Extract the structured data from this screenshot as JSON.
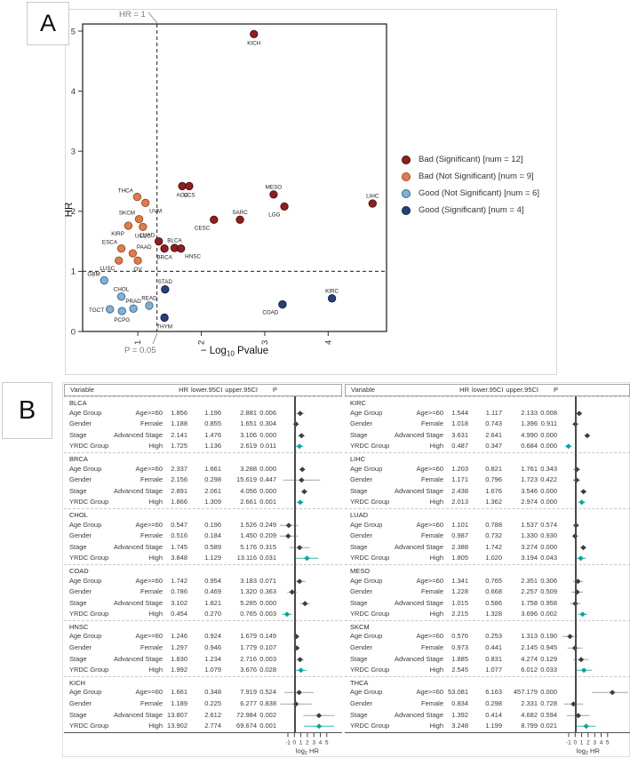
{
  "panelA": {
    "label": "A",
    "legend_title": "",
    "legend": [
      {
        "label": "Bad (Significant) [num = 12]",
        "color": "#8e1f1f",
        "stroke": "#4a0d0d"
      },
      {
        "label": "Bad (Not Significant) [num = 9]",
        "color": "#e07b4f",
        "stroke": "#9c4a1e"
      },
      {
        "label": "Good (Not Significant) [num = 6]",
        "color": "#7fb2d5",
        "stroke": "#39648c"
      },
      {
        "label": "Good (Significant) [num = 4]",
        "color": "#26407c",
        "stroke": "#101e3e"
      }
    ]
  },
  "panelB": {
    "label": "B",
    "headers": {
      "variable": "Variable",
      "hr": "HR",
      "lower": "lower.95CI",
      "upper": "upper.95CI",
      "p": "P"
    },
    "axis": {
      "ticks": [
        -1,
        0,
        1,
        2,
        3,
        4,
        5
      ],
      "label_parts": [
        "log",
        "2",
        " HR"
      ]
    }
  },
  "chart_data": [
    {
      "id": "hr-vs-pvalue-scatter",
      "type": "scatter",
      "title": "",
      "xlabel": "− Log10 Pvalue",
      "xlabel_parts": [
        "− Log",
        "10",
        " Pvalue"
      ],
      "ylabel": "HR",
      "xlim": [
        0.13,
        4.92
      ],
      "ylim": [
        0,
        5.1
      ],
      "xticks": [
        1,
        2,
        3,
        4
      ],
      "yticks": [
        0,
        1,
        2,
        3,
        4,
        5
      ],
      "vline": {
        "x": 1.301,
        "label": "P = 0.05"
      },
      "hline": {
        "y": 1,
        "label": "HR = 1"
      },
      "series": [
        {
          "name": "Bad (Significant) [num = 12]",
          "color": "#8e1f1f",
          "stroke": "#4a0d0d",
          "points": [
            {
              "label": "KICH",
              "x": 2.83,
              "y": 4.95,
              "lp": "s"
            },
            {
              "label": "ACC",
              "x": 1.7,
              "y": 2.42,
              "lp": "s"
            },
            {
              "label": "UCS",
              "x": 1.81,
              "y": 2.42,
              "lp": "s"
            },
            {
              "label": "MESO",
              "x": 3.14,
              "y": 2.28,
              "lp": "n"
            },
            {
              "label": "LGG",
              "x": 3.31,
              "y": 2.08,
              "lp": "sw"
            },
            {
              "label": "LIHC",
              "x": 4.7,
              "y": 2.13,
              "lp": "n"
            },
            {
              "label": "SARC",
              "x": 2.61,
              "y": 1.86,
              "lp": "n"
            },
            {
              "label": "CESC",
              "x": 2.2,
              "y": 1.86,
              "lp": "sw"
            },
            {
              "label": "LUAD",
              "x": 1.33,
              "y": 1.5,
              "lp": "nw"
            },
            {
              "label": "BRCA",
              "x": 1.42,
              "y": 1.38,
              "lp": "s"
            },
            {
              "label": "BLCA",
              "x": 1.58,
              "y": 1.39,
              "lp": "n"
            },
            {
              "label": "HNSC",
              "x": 1.68,
              "y": 1.38,
              "lp": "se"
            }
          ]
        },
        {
          "name": "Bad (Not Significant) [num = 9]",
          "color": "#e07b4f",
          "stroke": "#9c4a1e",
          "points": [
            {
              "label": "THCA",
              "x": 0.99,
              "y": 2.24,
              "lp": "nw"
            },
            {
              "label": "UVM",
              "x": 1.12,
              "y": 2.14,
              "lp": "se"
            },
            {
              "label": "SKCM",
              "x": 1.02,
              "y": 1.87,
              "lp": "nw"
            },
            {
              "label": "UCEC",
              "x": 1.08,
              "y": 1.74,
              "lp": "s"
            },
            {
              "label": "KIRP",
              "x": 0.85,
              "y": 1.76,
              "lp": "sw"
            },
            {
              "label": "ESCA",
              "x": 0.74,
              "y": 1.38,
              "lp": "nw"
            },
            {
              "label": "PAAD",
              "x": 0.92,
              "y": 1.3,
              "lp": "ne"
            },
            {
              "label": "LUSC",
              "x": 0.7,
              "y": 1.18,
              "lp": "sw"
            },
            {
              "label": "OV",
              "x": 1.0,
              "y": 1.18,
              "lp": "s"
            }
          ]
        },
        {
          "name": "Good (Not Significant) [num = 6]",
          "color": "#7fb2d5",
          "stroke": "#39648c",
          "points": [
            {
              "label": "GBM",
              "x": 0.47,
              "y": 0.85,
              "lp": "nw"
            },
            {
              "label": "CHOL",
              "x": 0.74,
              "y": 0.58,
              "lp": "n"
            },
            {
              "label": "TGCT",
              "x": 0.56,
              "y": 0.37,
              "lp": "w"
            },
            {
              "label": "PCPG",
              "x": 0.75,
              "y": 0.34,
              "lp": "s"
            },
            {
              "label": "PRAD",
              "x": 0.93,
              "y": 0.38,
              "lp": "n"
            },
            {
              "label": "READ",
              "x": 1.18,
              "y": 0.43,
              "lp": "n"
            }
          ]
        },
        {
          "name": "Good (Significant) [num = 4]",
          "color": "#26407c",
          "stroke": "#101e3e",
          "points": [
            {
              "label": "STAD",
              "x": 1.43,
              "y": 0.7,
              "lp": "n"
            },
            {
              "label": "THYM",
              "x": 1.42,
              "y": 0.23,
              "lp": "s"
            },
            {
              "label": "COAD",
              "x": 3.28,
              "y": 0.45,
              "lp": "sw"
            },
            {
              "label": "KIRC",
              "x": 4.06,
              "y": 0.55,
              "lp": "n"
            }
          ]
        }
      ]
    },
    {
      "id": "forest-left",
      "type": "table",
      "cancers": [
        {
          "name": "BLCA",
          "rows": [
            {
              "variable": "Age Group",
              "level": "Age>=60",
              "hr": "1.856",
              "lower": "1.196",
              "upper": "2.881",
              "p": "0.006",
              "highlight": false
            },
            {
              "variable": "Gender",
              "level": "Female",
              "hr": "1.188",
              "lower": "0.855",
              "upper": "1.651",
              "p": "0.304",
              "highlight": false
            },
            {
              "variable": "Stage",
              "level": "Advanced Stage",
              "hr": "2.141",
              "lower": "1.476",
              "upper": "3.106",
              "p": "0.000",
              "highlight": false
            },
            {
              "variable": "YRDC Group",
              "level": "High",
              "hr": "1.725",
              "lower": "1.136",
              "upper": "2.619",
              "p": "0.011",
              "highlight": true
            }
          ]
        },
        {
          "name": "BRCA",
          "rows": [
            {
              "variable": "Age Group",
              "level": "Age>=60",
              "hr": "2.337",
              "lower": "1.661",
              "upper": "3.288",
              "p": "0.000",
              "highlight": false
            },
            {
              "variable": "Gender",
              "level": "Female",
              "hr": "2.156",
              "lower": "0.298",
              "upper": "15.619",
              "p": "0.447",
              "highlight": false
            },
            {
              "variable": "Stage",
              "level": "Advanced Stage",
              "hr": "2.891",
              "lower": "2.061",
              "upper": "4.056",
              "p": "0.000",
              "highlight": false
            },
            {
              "variable": "YRDC Group",
              "level": "High",
              "hr": "1.866",
              "lower": "1.309",
              "upper": "2.661",
              "p": "0.001",
              "highlight": true
            }
          ]
        },
        {
          "name": "CHOL",
          "rows": [
            {
              "variable": "Age Group",
              "level": "Age>=60",
              "hr": "0.547",
              "lower": "0.196",
              "upper": "1.526",
              "p": "0.249",
              "highlight": false
            },
            {
              "variable": "Gender",
              "level": "Female",
              "hr": "0.516",
              "lower": "0.184",
              "upper": "1.450",
              "p": "0.209",
              "highlight": false
            },
            {
              "variable": "Stage",
              "level": "Advanced Stage",
              "hr": "1.745",
              "lower": "0.589",
              "upper": "5.176",
              "p": "0.315",
              "highlight": false
            },
            {
              "variable": "YRDC Group",
              "level": "High",
              "hr": "3.848",
              "lower": "1.129",
              "upper": "13.116",
              "p": "0.031",
              "highlight": true
            }
          ]
        },
        {
          "name": "COAD",
          "rows": [
            {
              "variable": "Age Group",
              "level": "Age>=60",
              "hr": "1.742",
              "lower": "0.954",
              "upper": "3.183",
              "p": "0.071",
              "highlight": false
            },
            {
              "variable": "Gender",
              "level": "Female",
              "hr": "0.786",
              "lower": "0.469",
              "upper": "1.320",
              "p": "0.363",
              "highlight": false
            },
            {
              "variable": "Stage",
              "level": "Advanced Stage",
              "hr": "3.102",
              "lower": "1.821",
              "upper": "5.285",
              "p": "0.000",
              "highlight": false
            },
            {
              "variable": "YRDC Group",
              "level": "High",
              "hr": "0.454",
              "lower": "0.270",
              "upper": "0.765",
              "p": "0.003",
              "highlight": true
            }
          ]
        },
        {
          "name": "HNSC",
          "rows": [
            {
              "variable": "Age Group",
              "level": "Age>=60",
              "hr": "1.246",
              "lower": "0.924",
              "upper": "1.679",
              "p": "0.149",
              "highlight": false
            },
            {
              "variable": "Gender",
              "level": "Female",
              "hr": "1.297",
              "lower": "0.946",
              "upper": "1.779",
              "p": "0.107",
              "highlight": false
            },
            {
              "variable": "Stage",
              "level": "Advanced Stage",
              "hr": "1.830",
              "lower": "1.234",
              "upper": "2.716",
              "p": "0.003",
              "highlight": false
            },
            {
              "variable": "YRDC Group",
              "level": "High",
              "hr": "1.992",
              "lower": "1.079",
              "upper": "3.676",
              "p": "0.028",
              "highlight": true
            }
          ]
        },
        {
          "name": "KICH",
          "rows": [
            {
              "variable": "Age Group",
              "level": "Age>=60",
              "hr": "1.661",
              "lower": "0.348",
              "upper": "7.919",
              "p": "0.524",
              "highlight": false
            },
            {
              "variable": "Gender",
              "level": "Female",
              "hr": "1.189",
              "lower": "0.225",
              "upper": "6.277",
              "p": "0.838",
              "highlight": false
            },
            {
              "variable": "Stage",
              "level": "Advanced Stage",
              "hr": "13.807",
              "lower": "2.612",
              "upper": "72.984",
              "p": "0.002",
              "highlight": false
            },
            {
              "variable": "YRDC Group",
              "level": "High",
              "hr": "13.902",
              "lower": "2.774",
              "upper": "69.674",
              "p": "0.001",
              "highlight": true
            }
          ]
        }
      ]
    },
    {
      "id": "forest-right",
      "type": "table",
      "cancers": [
        {
          "name": "KIRC",
          "rows": [
            {
              "variable": "Age Group",
              "level": "Age>=60",
              "hr": "1.544",
              "lower": "1.117",
              "upper": "2.133",
              "p": "0.008",
              "highlight": false
            },
            {
              "variable": "Gender",
              "level": "Female",
              "hr": "1.018",
              "lower": "0.743",
              "upper": "1.396",
              "p": "0.911",
              "highlight": false
            },
            {
              "variable": "Stage",
              "level": "Advanced Stage",
              "hr": "3.631",
              "lower": "2.641",
              "upper": "4.990",
              "p": "0.000",
              "highlight": false
            },
            {
              "variable": "YRDC Group",
              "level": "High",
              "hr": "0.487",
              "lower": "0.347",
              "upper": "0.684",
              "p": "0.000",
              "highlight": true
            }
          ]
        },
        {
          "name": "LIHC",
          "rows": [
            {
              "variable": "Age Group",
              "level": "Age>=60",
              "hr": "1.203",
              "lower": "0.821",
              "upper": "1.761",
              "p": "0.343",
              "highlight": false
            },
            {
              "variable": "Gender",
              "level": "Female",
              "hr": "1.171",
              "lower": "0.796",
              "upper": "1.723",
              "p": "0.422",
              "highlight": false
            },
            {
              "variable": "Stage",
              "level": "Advanced Stage",
              "hr": "2.438",
              "lower": "1.676",
              "upper": "3.546",
              "p": "0.000",
              "highlight": false
            },
            {
              "variable": "YRDC Group",
              "level": "High",
              "hr": "2.013",
              "lower": "1.362",
              "upper": "2.974",
              "p": "0.000",
              "highlight": true
            }
          ]
        },
        {
          "name": "LUAD",
          "rows": [
            {
              "variable": "Age Group",
              "level": "Age>=60",
              "hr": "1.101",
              "lower": "0.788",
              "upper": "1.537",
              "p": "0.574",
              "highlight": false
            },
            {
              "variable": "Gender",
              "level": "Female",
              "hr": "0.987",
              "lower": "0.732",
              "upper": "1.330",
              "p": "0.930",
              "highlight": false
            },
            {
              "variable": "Stage",
              "level": "Advanced Stage",
              "hr": "2.388",
              "lower": "1.742",
              "upper": "3.274",
              "p": "0.000",
              "highlight": false
            },
            {
              "variable": "YRDC Group",
              "level": "High",
              "hr": "1.805",
              "lower": "1.020",
              "upper": "3.194",
              "p": "0.043",
              "highlight": true
            }
          ]
        },
        {
          "name": "MESO",
          "rows": [
            {
              "variable": "Age Group",
              "level": "Age>=60",
              "hr": "1.341",
              "lower": "0.765",
              "upper": "2.351",
              "p": "0.306",
              "highlight": false
            },
            {
              "variable": "Gender",
              "level": "Female",
              "hr": "1.228",
              "lower": "0.668",
              "upper": "2.257",
              "p": "0.509",
              "highlight": false
            },
            {
              "variable": "Stage",
              "level": "Advanced Stage",
              "hr": "1.015",
              "lower": "0.586",
              "upper": "1.758",
              "p": "0.958",
              "highlight": false
            },
            {
              "variable": "YRDC Group",
              "level": "High",
              "hr": "2.215",
              "lower": "1.328",
              "upper": "3.696",
              "p": "0.002",
              "highlight": true
            }
          ]
        },
        {
          "name": "SKCM",
          "rows": [
            {
              "variable": "Age Group",
              "level": "Age>=60",
              "hr": "0.576",
              "lower": "0.253",
              "upper": "1.313",
              "p": "0.190",
              "highlight": false
            },
            {
              "variable": "Gender",
              "level": "Female",
              "hr": "0.973",
              "lower": "0.441",
              "upper": "2.145",
              "p": "0.945",
              "highlight": false
            },
            {
              "variable": "Stage",
              "level": "Advanced Stage",
              "hr": "1.885",
              "lower": "0.831",
              "upper": "4.274",
              "p": "0.129",
              "highlight": false
            },
            {
              "variable": "YRDC Group",
              "level": "High",
              "hr": "2.545",
              "lower": "1.077",
              "upper": "6.012",
              "p": "0.033",
              "highlight": true
            }
          ]
        },
        {
          "name": "THCA",
          "rows": [
            {
              "variable": "Age Group",
              "level": "Age>=60",
              "hr": "53.081",
              "lower": "6.163",
              "upper": "457.179",
              "p": "0.000",
              "highlight": false
            },
            {
              "variable": "Gender",
              "level": "Female",
              "hr": "0.834",
              "lower": "0.298",
              "upper": "2.331",
              "p": "0.728",
              "highlight": false
            },
            {
              "variable": "Stage",
              "level": "Advanced Stage",
              "hr": "1.392",
              "lower": "0.414",
              "upper": "4.682",
              "p": "0.594",
              "highlight": false
            },
            {
              "variable": "YRDC Group",
              "level": "High",
              "hr": "3.248",
              "lower": "1.199",
              "upper": "8.799",
              "p": "0.021",
              "highlight": true
            }
          ]
        }
      ]
    }
  ],
  "colors": {
    "teal": "#00a79d",
    "teal_whisker": "#35b5ab",
    "diamond": "#3d3d3d",
    "whisker": "#a3a3a3",
    "refline": "#4a4a4a"
  }
}
